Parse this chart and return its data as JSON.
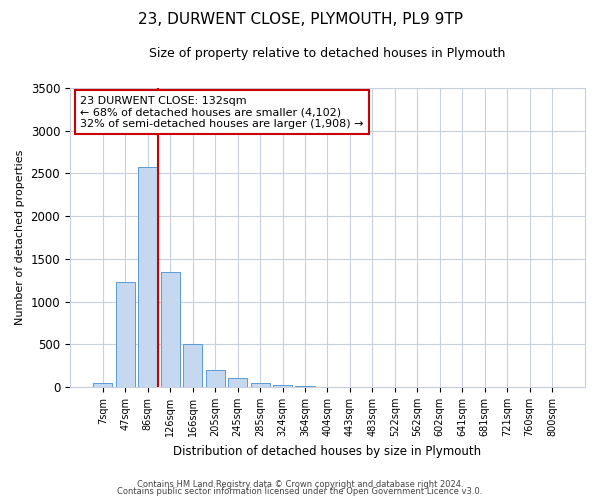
{
  "title": "23, DURWENT CLOSE, PLYMOUTH, PL9 9TP",
  "subtitle": "Size of property relative to detached houses in Plymouth",
  "xlabel": "Distribution of detached houses by size in Plymouth",
  "ylabel": "Number of detached properties",
  "bar_labels": [
    "7sqm",
    "47sqm",
    "86sqm",
    "126sqm",
    "166sqm",
    "205sqm",
    "245sqm",
    "285sqm",
    "324sqm",
    "364sqm",
    "404sqm",
    "443sqm",
    "483sqm",
    "522sqm",
    "562sqm",
    "602sqm",
    "641sqm",
    "681sqm",
    "721sqm",
    "760sqm",
    "800sqm"
  ],
  "bar_values": [
    50,
    1230,
    2580,
    1350,
    500,
    200,
    110,
    45,
    25,
    10,
    5,
    0,
    0,
    0,
    0,
    0,
    0,
    0,
    0,
    0,
    0
  ],
  "bar_color": "#c5d8f0",
  "bar_edge_color": "#5b9bd5",
  "vline_color": "#cc0000",
  "ylim": [
    0,
    3500
  ],
  "annotation_line1": "23 DURWENT CLOSE: 132sqm",
  "annotation_line2": "← 68% of detached houses are smaller (4,102)",
  "annotation_line3": "32% of semi-detached houses are larger (1,908) →",
  "footer1": "Contains HM Land Registry data © Crown copyright and database right 2024.",
  "footer2": "Contains public sector information licensed under the Open Government Licence v3.0.",
  "background_color": "#ffffff",
  "grid_color": "#c8d0de"
}
